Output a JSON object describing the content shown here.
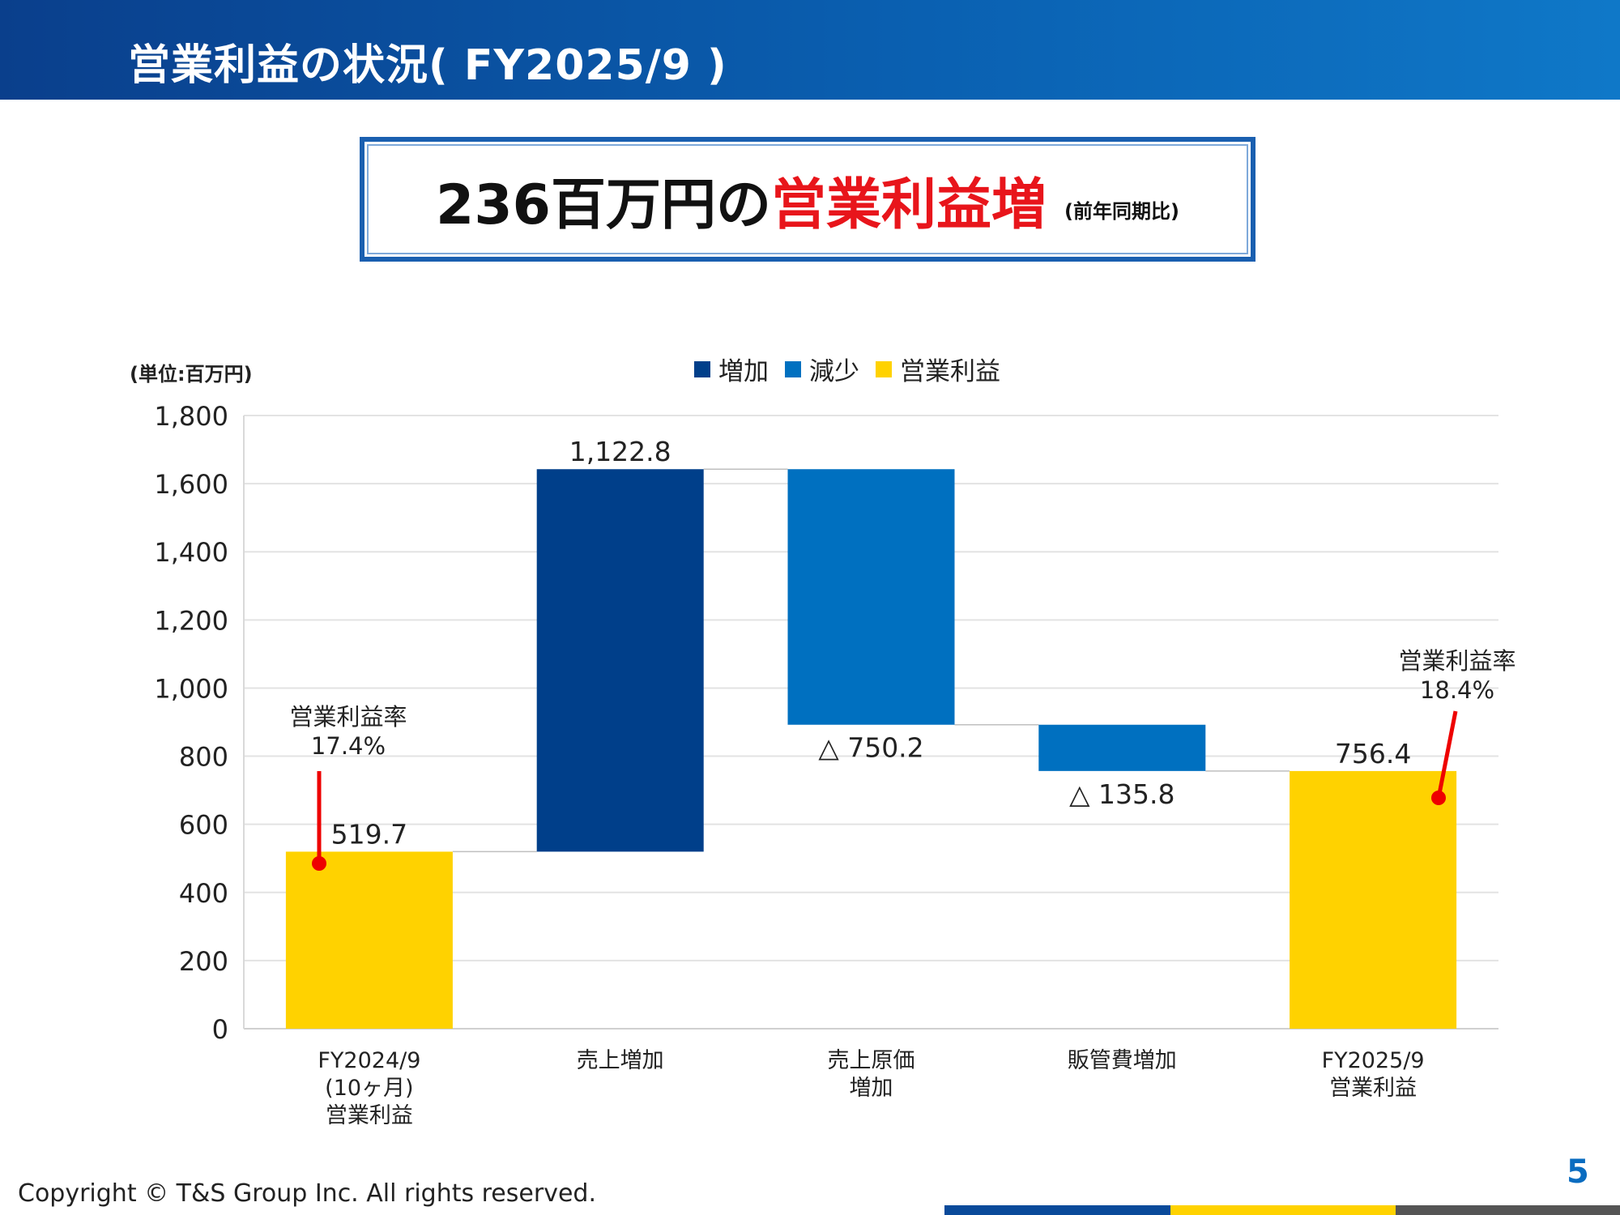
{
  "header": {
    "title": "営業利益の状況( FY2025/9 )"
  },
  "headline": {
    "amount": "236百万円の",
    "emphasis": "営業利益増",
    "note": "(前年同期比)"
  },
  "unit_label": "(単位:百万円)",
  "legend": [
    {
      "label": "増加",
      "color": "#003f8a"
    },
    {
      "label": "減少",
      "color": "#0070c0"
    },
    {
      "label": "営業利益",
      "color": "#ffd200"
    }
  ],
  "chart_data": {
    "type": "waterfall",
    "y_ticks": [
      "0",
      "200",
      "400",
      "600",
      "800",
      "1,000",
      "1,200",
      "1,400",
      "1,600",
      "1,800"
    ],
    "ylim": [
      0,
      1800
    ],
    "grid": true,
    "legend_position": "top",
    "bars": [
      {
        "category": [
          "FY2024/9",
          "(10ヶ月)",
          "営業利益"
        ],
        "kind": "total",
        "start": 0,
        "end": 519.7,
        "label": "519.7",
        "label_pos": "above",
        "color": "#ffd200"
      },
      {
        "category": [
          "売上増加"
        ],
        "kind": "increase",
        "start": 519.7,
        "end": 1642.5,
        "label": "1,122.8",
        "label_pos": "above",
        "color": "#003f8a"
      },
      {
        "category": [
          "売上原価",
          "増加"
        ],
        "kind": "decrease",
        "start": 1642.5,
        "end": 892.3,
        "label": "△ 750.2",
        "label_pos": "below",
        "color": "#0070c0"
      },
      {
        "category": [
          "販管費増加"
        ],
        "kind": "decrease",
        "start": 892.3,
        "end": 756.5,
        "label": "△ 135.8",
        "label_pos": "below",
        "color": "#0070c0"
      },
      {
        "category": [
          "FY2025/9",
          "営業利益"
        ],
        "kind": "total",
        "start": 0,
        "end": 756.4,
        "label": "756.4",
        "label_pos": "above",
        "color": "#ffd200"
      }
    ],
    "annotations": [
      {
        "bar_index": 0,
        "text": [
          "営業利益率",
          "17.4%"
        ]
      },
      {
        "bar_index": 4,
        "text": [
          "営業利益率",
          "18.4%"
        ]
      }
    ]
  },
  "footer": {
    "copyright": "Copyright © T&S Group Inc. All rights reserved.",
    "page": "5",
    "bar_colors": [
      "#0a4a9a",
      "#ffd200",
      "#555555"
    ]
  }
}
